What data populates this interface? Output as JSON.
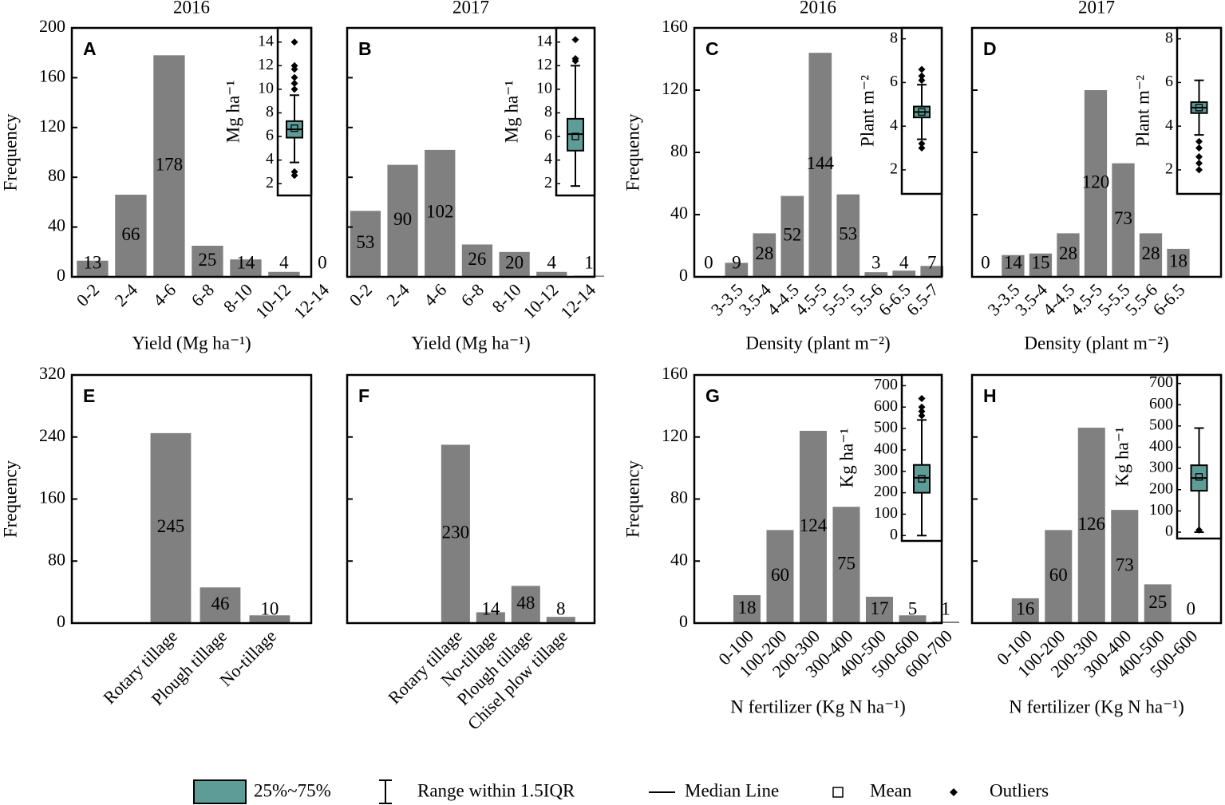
{
  "chart_data": [
    {
      "type": "bar",
      "title": "2016",
      "panel_label": "A",
      "ylabel": "Frequency",
      "xlabel": "Yield (Mg ha⁻¹)",
      "color": "#808080",
      "categories": [
        "0-2",
        "2-4",
        "4-6",
        "6-8",
        "8-10",
        "10-12",
        "12-14"
      ],
      "values": [
        13,
        66,
        178,
        25,
        14,
        4,
        0
      ],
      "xlim": [
        -0.54,
        5.71
      ],
      "ylim": [
        0,
        200
      ],
      "yticks": [
        0,
        40,
        80,
        120,
        160,
        200
      ],
      "ytick_labels": true,
      "inset": {
        "type": "box",
        "ylabel": "Mg ha⁻¹",
        "color": "#5e9c98",
        "ylim": [
          1,
          15.2
        ],
        "yticks": [
          2,
          4,
          6,
          8,
          10,
          12,
          14
        ],
        "q1": 5.9,
        "q3": 7.3,
        "median": 6.6,
        "mean": 6.7,
        "whisker_low": 3.8,
        "whisker_high": 9.5,
        "outliers": [
          2.7,
          3.0,
          10.0,
          10.5,
          11.0,
          11.7,
          12.0,
          14.0
        ]
      }
    },
    {
      "type": "bar",
      "title": "2017",
      "panel_label": "B",
      "xlabel": "Yield (Mg ha⁻¹)",
      "color": "#808080",
      "categories": [
        "0-2",
        "2-4",
        "4-6",
        "6-8",
        "8-10",
        "10-12",
        "12-14"
      ],
      "values": [
        53,
        90,
        102,
        26,
        20,
        4,
        1
      ],
      "xlim": [
        -0.49,
        6.15
      ],
      "ylim": [
        0,
        200
      ],
      "yticks": [
        0,
        40,
        80,
        120,
        160,
        200
      ],
      "ytick_labels": false,
      "inset": {
        "type": "box",
        "ylabel": "Mg ha⁻¹",
        "color": "#5e9c98",
        "ylim": [
          1,
          15.2
        ],
        "yticks": [
          2,
          4,
          6,
          8,
          10,
          12,
          14
        ],
        "q1": 4.8,
        "q3": 7.5,
        "median": 6.2,
        "mean": 6.0,
        "whisker_low": 1.8,
        "whisker_high": 12.0,
        "outliers": [
          12.4,
          12.6,
          14.2
        ]
      }
    },
    {
      "type": "bar",
      "title": "2016",
      "panel_label": "C",
      "ylabel": "Frequency",
      "xlabel": "Density (plant m⁻²)",
      "color": "#808080",
      "categories": [
        null,
        "3-3.5",
        "3.5-4",
        "4-4.5",
        "4.5-5",
        "5-5.5",
        "5.5-6",
        "6-6.5",
        "6.5-7"
      ],
      "values": [
        0,
        9,
        28,
        52,
        144,
        53,
        3,
        4,
        7
      ],
      "xlim": [
        -0.51,
        8.35
      ],
      "ylim": [
        0,
        160
      ],
      "yticks": [
        0,
        40,
        80,
        120,
        160
      ],
      "ytick_labels": true,
      "inset": {
        "type": "box",
        "ylabel": "Plant m⁻²",
        "color": "#5e9c98",
        "ylim": [
          0.9,
          8.5
        ],
        "yticks": [
          2,
          4,
          6,
          8
        ],
        "q1": 4.4,
        "q3": 4.9,
        "median": 4.65,
        "mean": 4.65,
        "whisker_low": 3.4,
        "whisker_high": 5.9,
        "outliers": [
          3.0,
          3.2,
          6.1,
          6.3,
          6.6
        ]
      }
    },
    {
      "type": "bar",
      "title": "2017",
      "panel_label": "D",
      "xlabel": "Density (plant m⁻²)",
      "color": "#808080",
      "categories": [
        null,
        "3-3.5",
        "3.5-4",
        "4-4.5",
        "4.5-5",
        "5-5.5",
        "5.5-6",
        "6-6.5"
      ],
      "values": [
        0,
        14,
        15,
        28,
        120,
        73,
        28,
        18
      ],
      "xlim": [
        -0.49,
        8.55
      ],
      "ylim": [
        0,
        160
      ],
      "yticks": [
        0,
        40,
        80,
        120,
        160
      ],
      "ytick_labels": false,
      "inset": {
        "type": "box",
        "ylabel": "Plant m⁻²",
        "color": "#5e9c98",
        "ylim": [
          0.9,
          8.5
        ],
        "yticks": [
          2,
          4,
          6,
          8
        ],
        "q1": 4.6,
        "q3": 5.1,
        "median": 4.85,
        "mean": 4.85,
        "whisker_low": 3.6,
        "whisker_high": 6.1,
        "outliers": [
          2.0,
          2.3,
          2.6,
          3.0,
          3.3
        ]
      }
    },
    {
      "type": "bar",
      "panel_label": "E",
      "ylabel": "Frequency",
      "color": "#808080",
      "categories": [
        "Rotary tillage",
        "Plough tillage",
        "No-tillage"
      ],
      "values": [
        245,
        46,
        10
      ],
      "xlim": [
        -2,
        2.84
      ],
      "ylim": [
        0,
        320
      ],
      "yticks": [
        0,
        80,
        160,
        240,
        320
      ],
      "ytick_labels": true
    },
    {
      "type": "bar",
      "panel_label": "F",
      "color": "#808080",
      "categories": [
        "Rotary tillage",
        "No-tillage",
        "Plough tillage",
        "Chisel  plow tillage"
      ],
      "values": [
        230,
        14,
        48,
        8
      ],
      "xlim": [
        -3.09,
        3.96
      ],
      "ylim": [
        0,
        320
      ],
      "yticks": [
        0,
        80,
        160,
        240,
        320
      ],
      "ytick_labels": false
    },
    {
      "type": "bar",
      "panel_label": "G",
      "ylabel": "Frequency",
      "xlabel": "N fertilizer (Kg N ha⁻¹)",
      "color": "#808080",
      "categories": [
        "0-100",
        "100-200",
        "200-300",
        "300-400",
        "400-500",
        "500-600",
        "600-700"
      ],
      "values": [
        18,
        60,
        124,
        75,
        17,
        5,
        1
      ],
      "xlim": [
        -1.59,
        5.88
      ],
      "ylim": [
        0,
        160
      ],
      "yticks": [
        0,
        40,
        80,
        120,
        160
      ],
      "ytick_labels": true,
      "inset": {
        "type": "box",
        "ylabel": "Kg ha⁻¹",
        "color": "#5e9c98",
        "ylim": [
          -25,
          750
        ],
        "yticks": [
          0,
          100,
          200,
          300,
          400,
          500,
          600,
          700
        ],
        "q1": 200,
        "q3": 330,
        "median": 270,
        "mean": 265,
        "whisker_low": 0,
        "whisker_high": 540,
        "outliers": [
          560,
          580,
          600,
          640
        ]
      }
    },
    {
      "type": "bar",
      "panel_label": "H",
      "xlabel": "N fertilizer (Kg N ha⁻¹)",
      "color": "#808080",
      "categories": [
        "0-100",
        "100-200",
        "200-300",
        "300-400",
        "400-500",
        "500-600"
      ],
      "values": [
        16,
        60,
        126,
        73,
        25,
        0
      ],
      "xlim": [
        -1.61,
        5.91
      ],
      "ylim": [
        0,
        160
      ],
      "yticks": [
        0,
        40,
        80,
        120,
        160
      ],
      "ytick_labels": false,
      "inset": {
        "type": "box",
        "ylabel": "Kg ha⁻¹",
        "color": "#5e9c98",
        "ylim": [
          -30,
          740
        ],
        "yticks": [
          0,
          100,
          200,
          300,
          400,
          500,
          600,
          700
        ],
        "q1": 195,
        "q3": 315,
        "median": 255,
        "mean": 260,
        "whisker_low": 0,
        "whisker_high": 490,
        "outliers": [
          10
        ]
      }
    }
  ],
  "legend": {
    "color": "#5e9c98",
    "entries": [
      "25%~75%",
      "Range within 1.5IQR",
      "Median Line",
      "Mean",
      "Outliers"
    ]
  }
}
